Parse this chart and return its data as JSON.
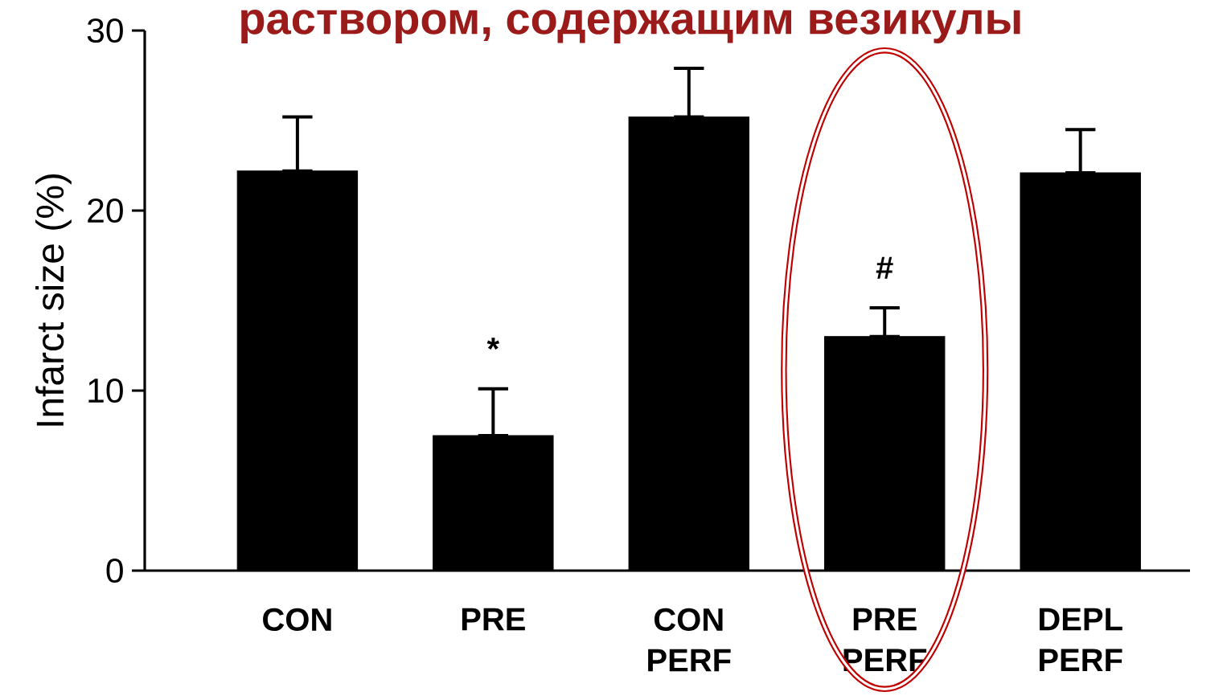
{
  "chart_data": {
    "type": "bar",
    "title": "раствором, содержащим везикулы",
    "ylabel": "Infarct size (%)",
    "categories": [
      "CON",
      "PRE",
      "CON PERF",
      "PRE PERF",
      "DEPL PERF"
    ],
    "values": [
      22.2,
      7.5,
      25.2,
      13.0,
      22.1
    ],
    "errors": [
      [
        22.2,
        25.2
      ],
      [
        7.5,
        10.1
      ],
      [
        25.2,
        27.9
      ],
      [
        13.0,
        14.6
      ],
      [
        22.1,
        24.5
      ]
    ],
    "color": "#000000",
    "ylim": [
      0,
      30
    ],
    "yticks": [
      0,
      10,
      20,
      30
    ],
    "annotations": [
      "*",
      "#"
    ]
  }
}
